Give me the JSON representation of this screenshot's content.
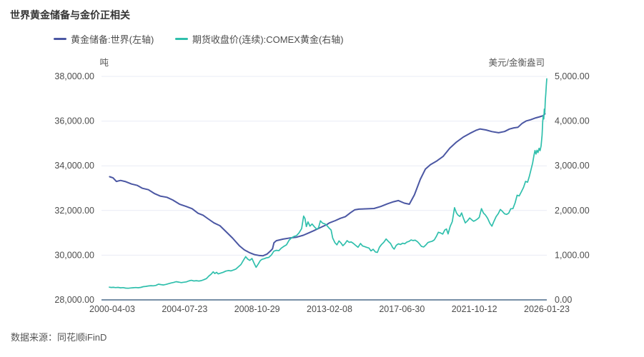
{
  "title": "世界黄金储备与金价正相关",
  "source": "数据来源：同花顺iFinD",
  "legend": [
    {
      "label": "黄金储备:世界(左轴)",
      "color": "#4B57A3"
    },
    {
      "label": "期货收盘价(连续):COMEX黄金(右轴)",
      "color": "#2FBFAC"
    }
  ],
  "chart_data": {
    "type": "line",
    "title": "世界黄金储备与金价正相关",
    "grid": true,
    "legend_position": "top",
    "left_axis": {
      "unit": "吨",
      "min": 28000,
      "max": 38000,
      "tick_labels": [
        "38,000.00",
        "36,000.00",
        "34,000.00",
        "32,000.00",
        "30,000.00",
        "28,000.00"
      ]
    },
    "right_axis": {
      "unit": "美元/金衡盎司",
      "min": 0,
      "max": 5000,
      "tick_labels": [
        "5,000.00",
        "4,000.00",
        "3,000.00",
        "2,000.00",
        "1,000.00",
        "0.00"
      ]
    },
    "x_axis": {
      "tick_labels": [
        "2000-04-03",
        "2004-07-23",
        "2008-10-29",
        "2013-02-08",
        "2017-06-30",
        "2021-10-12",
        "2026-01-23"
      ],
      "tick_years": [
        2000.254,
        2004.557,
        2008.825,
        2013.104,
        2017.493,
        2021.778,
        2026.06
      ]
    },
    "series": [
      {
        "name": "黄金储备:世界(左轴)",
        "axis": "left",
        "color": "#4B57A3",
        "width": 2,
        "points": [
          [
            2000.1,
            33510
          ],
          [
            2000.3,
            33460
          ],
          [
            2000.5,
            33300
          ],
          [
            2000.75,
            33345
          ],
          [
            2001.05,
            33290
          ],
          [
            2001.4,
            33185
          ],
          [
            2001.75,
            33120
          ],
          [
            2002.05,
            32995
          ],
          [
            2002.4,
            32930
          ],
          [
            2002.75,
            32765
          ],
          [
            2003.1,
            32645
          ],
          [
            2003.5,
            32590
          ],
          [
            2003.85,
            32470
          ],
          [
            2004.25,
            32285
          ],
          [
            2004.65,
            32180
          ],
          [
            2005.0,
            32080
          ],
          [
            2005.35,
            31875
          ],
          [
            2005.65,
            31790
          ],
          [
            2005.95,
            31625
          ],
          [
            2006.3,
            31445
          ],
          [
            2006.65,
            31320
          ],
          [
            2007.0,
            31065
          ],
          [
            2007.4,
            30765
          ],
          [
            2007.8,
            30425
          ],
          [
            2008.1,
            30235
          ],
          [
            2008.4,
            30115
          ],
          [
            2008.7,
            30025
          ],
          [
            2008.95,
            29990
          ],
          [
            2009.2,
            29970
          ],
          [
            2009.45,
            30050
          ],
          [
            2009.65,
            30190
          ],
          [
            2009.77,
            30280
          ],
          [
            2009.86,
            30555
          ],
          [
            2010.0,
            30650
          ],
          [
            2010.4,
            30720
          ],
          [
            2010.8,
            30770
          ],
          [
            2011.2,
            30805
          ],
          [
            2011.6,
            30890
          ],
          [
            2011.9,
            30990
          ],
          [
            2012.2,
            31090
          ],
          [
            2012.6,
            31230
          ],
          [
            2013.0,
            31370
          ],
          [
            2013.15,
            31445
          ],
          [
            2013.5,
            31545
          ],
          [
            2013.8,
            31650
          ],
          [
            2014.1,
            31725
          ],
          [
            2014.4,
            31900
          ],
          [
            2014.65,
            32030
          ],
          [
            2014.9,
            32060
          ],
          [
            2015.3,
            32075
          ],
          [
            2015.8,
            32090
          ],
          [
            2016.2,
            32180
          ],
          [
            2016.6,
            32300
          ],
          [
            2016.95,
            32390
          ],
          [
            2017.25,
            32445
          ],
          [
            2017.6,
            32330
          ],
          [
            2017.9,
            32280
          ],
          [
            2018.2,
            32700
          ],
          [
            2018.55,
            33400
          ],
          [
            2018.85,
            33850
          ],
          [
            2019.15,
            34050
          ],
          [
            2019.5,
            34200
          ],
          [
            2019.9,
            34420
          ],
          [
            2020.3,
            34790
          ],
          [
            2020.7,
            35065
          ],
          [
            2021.1,
            35285
          ],
          [
            2021.5,
            35455
          ],
          [
            2021.85,
            35585
          ],
          [
            2022.1,
            35650
          ],
          [
            2022.45,
            35605
          ],
          [
            2022.8,
            35530
          ],
          [
            2023.2,
            35480
          ],
          [
            2023.55,
            35535
          ],
          [
            2023.85,
            35645
          ],
          [
            2024.1,
            35695
          ],
          [
            2024.35,
            35725
          ],
          [
            2024.6,
            35900
          ],
          [
            2024.85,
            36010
          ],
          [
            2025.1,
            36060
          ],
          [
            2025.4,
            36145
          ],
          [
            2025.65,
            36195
          ],
          [
            2025.85,
            36245
          ],
          [
            2025.95,
            36330
          ]
        ]
      },
      {
        "name": "期货收盘价(连续):COMEX黄金(右轴)",
        "axis": "right",
        "color": "#2FBFAC",
        "width": 1.7,
        "points": [
          [
            2000.08,
            284
          ],
          [
            2000.2,
            278
          ],
          [
            2000.32,
            281
          ],
          [
            2000.45,
            274
          ],
          [
            2000.6,
            279
          ],
          [
            2000.75,
            270
          ],
          [
            2000.9,
            274
          ],
          [
            2001.05,
            264
          ],
          [
            2001.2,
            260
          ],
          [
            2001.35,
            266
          ],
          [
            2001.5,
            271
          ],
          [
            2001.65,
            276
          ],
          [
            2001.8,
            272
          ],
          [
            2001.95,
            279
          ],
          [
            2002.1,
            295
          ],
          [
            2002.25,
            302
          ],
          [
            2002.4,
            312
          ],
          [
            2002.55,
            318
          ],
          [
            2002.7,
            314
          ],
          [
            2002.85,
            324
          ],
          [
            2003.0,
            352
          ],
          [
            2003.15,
            342
          ],
          [
            2003.3,
            334
          ],
          [
            2003.45,
            346
          ],
          [
            2003.6,
            362
          ],
          [
            2003.75,
            378
          ],
          [
            2003.9,
            390
          ],
          [
            2004.05,
            408
          ],
          [
            2004.2,
            398
          ],
          [
            2004.35,
            387
          ],
          [
            2004.5,
            394
          ],
          [
            2004.65,
            403
          ],
          [
            2004.8,
            424
          ],
          [
            2004.95,
            438
          ],
          [
            2005.1,
            424
          ],
          [
            2005.25,
            429
          ],
          [
            2005.4,
            422
          ],
          [
            2005.55,
            432
          ],
          [
            2005.7,
            452
          ],
          [
            2005.85,
            476
          ],
          [
            2006.0,
            536
          ],
          [
            2006.12,
            572
          ],
          [
            2006.25,
            628
          ],
          [
            2006.35,
            590
          ],
          [
            2006.45,
            616
          ],
          [
            2006.55,
            582
          ],
          [
            2006.7,
            600
          ],
          [
            2006.85,
            618
          ],
          [
            2007.0,
            644
          ],
          [
            2007.15,
            656
          ],
          [
            2007.3,
            648
          ],
          [
            2007.45,
            668
          ],
          [
            2007.6,
            690
          ],
          [
            2007.75,
            742
          ],
          [
            2007.9,
            790
          ],
          [
            2008.05,
            890
          ],
          [
            2008.18,
            968
          ],
          [
            2008.3,
            912
          ],
          [
            2008.42,
            884
          ],
          [
            2008.55,
            926
          ],
          [
            2008.68,
            820
          ],
          [
            2008.8,
            728
          ],
          [
            2008.92,
            800
          ],
          [
            2009.05,
            880
          ],
          [
            2009.15,
            908
          ],
          [
            2009.28,
            922
          ],
          [
            2009.4,
            940
          ],
          [
            2009.55,
            950
          ],
          [
            2009.7,
            1002
          ],
          [
            2009.85,
            1090
          ],
          [
            2010.0,
            1108
          ],
          [
            2010.15,
            1102
          ],
          [
            2010.3,
            1160
          ],
          [
            2010.45,
            1198
          ],
          [
            2010.6,
            1232
          ],
          [
            2010.75,
            1330
          ],
          [
            2010.9,
            1388
          ],
          [
            2011.05,
            1420
          ],
          [
            2011.2,
            1438
          ],
          [
            2011.35,
            1500
          ],
          [
            2011.5,
            1594
          ],
          [
            2011.62,
            1876
          ],
          [
            2011.7,
            1820
          ],
          [
            2011.78,
            1640
          ],
          [
            2011.88,
            1744
          ],
          [
            2012.0,
            1650
          ],
          [
            2012.12,
            1698
          ],
          [
            2012.25,
            1640
          ],
          [
            2012.38,
            1586
          ],
          [
            2012.5,
            1606
          ],
          [
            2012.62,
            1768
          ],
          [
            2012.75,
            1716
          ],
          [
            2012.88,
            1700
          ],
          [
            2013.0,
            1664
          ],
          [
            2013.12,
            1612
          ],
          [
            2013.25,
            1564
          ],
          [
            2013.35,
            1382
          ],
          [
            2013.48,
            1280
          ],
          [
            2013.6,
            1232
          ],
          [
            2013.72,
            1320
          ],
          [
            2013.85,
            1268
          ],
          [
            2013.95,
            1212
          ],
          [
            2014.08,
            1258
          ],
          [
            2014.2,
            1326
          ],
          [
            2014.32,
            1288
          ],
          [
            2014.45,
            1296
          ],
          [
            2014.58,
            1262
          ],
          [
            2014.7,
            1222
          ],
          [
            2014.85,
            1178
          ],
          [
            2015.0,
            1262
          ],
          [
            2015.12,
            1208
          ],
          [
            2015.25,
            1192
          ],
          [
            2015.38,
            1172
          ],
          [
            2015.5,
            1160
          ],
          [
            2015.62,
            1096
          ],
          [
            2015.75,
            1132
          ],
          [
            2015.88,
            1072
          ],
          [
            2016.0,
            1062
          ],
          [
            2016.12,
            1178
          ],
          [
            2016.25,
            1242
          ],
          [
            2016.38,
            1288
          ],
          [
            2016.52,
            1362
          ],
          [
            2016.65,
            1308
          ],
          [
            2016.78,
            1262
          ],
          [
            2016.9,
            1176
          ],
          [
            2017.0,
            1136
          ],
          [
            2017.12,
            1220
          ],
          [
            2017.25,
            1254
          ],
          [
            2017.38,
            1240
          ],
          [
            2017.5,
            1268
          ],
          [
            2017.62,
            1256
          ],
          [
            2017.75,
            1292
          ],
          [
            2017.88,
            1308
          ],
          [
            2018.0,
            1342
          ],
          [
            2018.12,
            1328
          ],
          [
            2018.25,
            1336
          ],
          [
            2018.38,
            1300
          ],
          [
            2018.5,
            1252
          ],
          [
            2018.62,
            1196
          ],
          [
            2018.75,
            1184
          ],
          [
            2018.88,
            1228
          ],
          [
            2019.0,
            1282
          ],
          [
            2019.12,
            1298
          ],
          [
            2019.25,
            1312
          ],
          [
            2019.38,
            1342
          ],
          [
            2019.5,
            1418
          ],
          [
            2019.62,
            1512
          ],
          [
            2019.75,
            1498
          ],
          [
            2019.88,
            1472
          ],
          [
            2020.0,
            1562
          ],
          [
            2020.1,
            1586
          ],
          [
            2020.2,
            1476
          ],
          [
            2020.32,
            1642
          ],
          [
            2020.45,
            1752
          ],
          [
            2020.58,
            2062
          ],
          [
            2020.7,
            1942
          ],
          [
            2020.8,
            1892
          ],
          [
            2020.9,
            1866
          ],
          [
            2021.0,
            1946
          ],
          [
            2021.1,
            1838
          ],
          [
            2021.22,
            1722
          ],
          [
            2021.35,
            1768
          ],
          [
            2021.48,
            1832
          ],
          [
            2021.6,
            1792
          ],
          [
            2021.72,
            1758
          ],
          [
            2021.85,
            1786
          ],
          [
            2021.95,
            1812
          ],
          [
            2022.05,
            1846
          ],
          [
            2022.18,
            2042
          ],
          [
            2022.3,
            1942
          ],
          [
            2022.42,
            1898
          ],
          [
            2022.55,
            1822
          ],
          [
            2022.68,
            1712
          ],
          [
            2022.8,
            1648
          ],
          [
            2022.92,
            1756
          ],
          [
            2023.05,
            1862
          ],
          [
            2023.18,
            1928
          ],
          [
            2023.3,
            2022
          ],
          [
            2023.42,
            1982
          ],
          [
            2023.55,
            1926
          ],
          [
            2023.68,
            1912
          ],
          [
            2023.8,
            1942
          ],
          [
            2023.92,
            2038
          ],
          [
            2024.05,
            2042
          ],
          [
            2024.18,
            2172
          ],
          [
            2024.3,
            2342
          ],
          [
            2024.42,
            2326
          ],
          [
            2024.55,
            2418
          ],
          [
            2024.68,
            2518
          ],
          [
            2024.8,
            2652
          ],
          [
            2024.92,
            2632
          ],
          [
            2025.02,
            2758
          ],
          [
            2025.12,
            2912
          ],
          [
            2025.22,
            3062
          ],
          [
            2025.3,
            3238
          ],
          [
            2025.36,
            3342
          ],
          [
            2025.42,
            3262
          ],
          [
            2025.48,
            3348
          ],
          [
            2025.54,
            3296
          ],
          [
            2025.6,
            3392
          ],
          [
            2025.66,
            3338
          ],
          [
            2025.72,
            3442
          ],
          [
            2025.78,
            3686
          ],
          [
            2025.82,
            3988
          ],
          [
            2025.85,
            4132
          ],
          [
            2025.88,
            4046
          ],
          [
            2025.91,
            4268
          ],
          [
            2025.94,
            4176
          ],
          [
            2025.97,
            4462
          ],
          [
            2026.0,
            4608
          ],
          [
            2026.03,
            4792
          ],
          [
            2026.06,
            4948
          ]
        ]
      }
    ]
  }
}
